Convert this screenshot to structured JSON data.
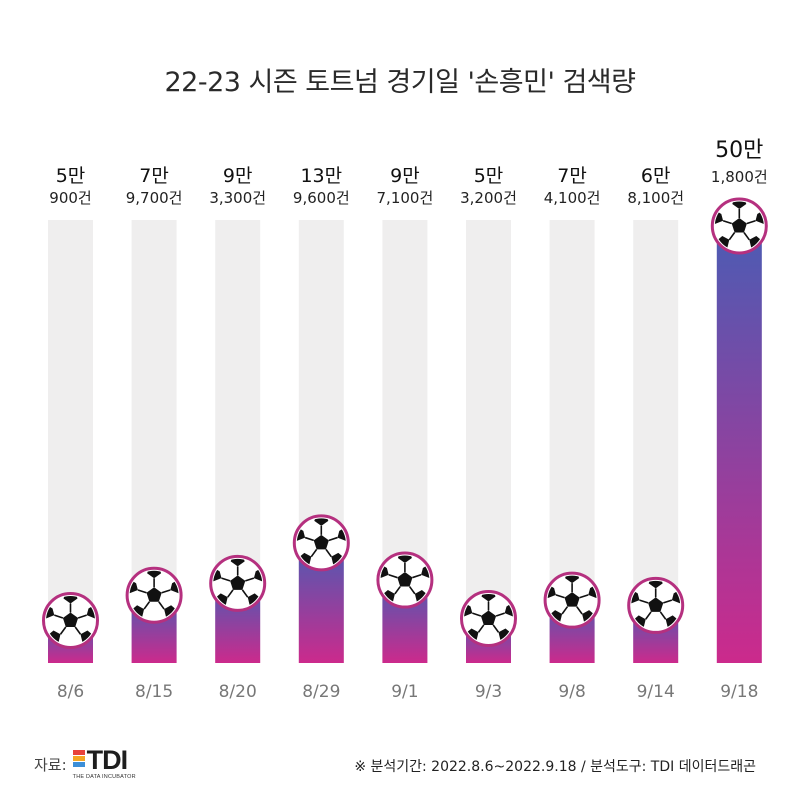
{
  "chart_data": {
    "type": "bar",
    "title": "22-23 시즌 토트넘 경기일 '손흥민' 검색량",
    "categories": [
      "8/6",
      "8/15",
      "8/20",
      "8/29",
      "9/1",
      "9/3",
      "9/8",
      "9/14",
      "9/18"
    ],
    "values": [
      50900,
      79700,
      93300,
      139600,
      97100,
      53200,
      74100,
      68100,
      501800
    ],
    "labels_top": [
      "5만",
      "7만",
      "9만",
      "13만",
      "9만",
      "5만",
      "7만",
      "6만",
      "50만"
    ],
    "labels_bottom": [
      "900건",
      "9,700건",
      "3,300건",
      "9,600건",
      "7,100건",
      "3,200건",
      "4,100건",
      "8,100건",
      "1,800건"
    ],
    "ylim": [
      0,
      501800
    ],
    "bar_gradient": {
      "top": "#4a5cb4",
      "bottom": "#cc2a8c"
    },
    "track_color": "#efeeee",
    "marker": "soccer-ball-icon",
    "marker_ring_color": "#b5307f"
  },
  "footer": {
    "source_label": "자료:",
    "logo_text": "TDI",
    "logo_subtext": "THE DATA INCUBATOR",
    "logo_colors": [
      "#e8433b",
      "#f5a623",
      "#3c8fd8"
    ],
    "note": "※ 분석기간:  2022.8.6~2022.9.18  / 분석도구: TDI 데이터드래곤"
  }
}
